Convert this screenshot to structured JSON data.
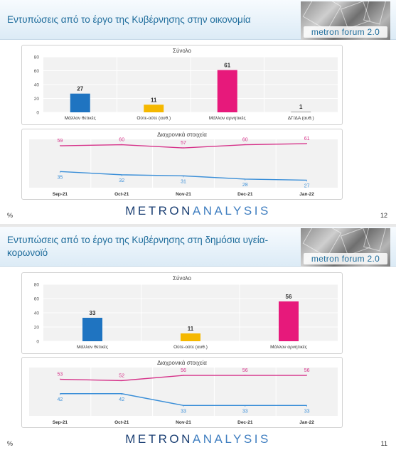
{
  "brand": {
    "part1": "METRON",
    "part2": "ANALYSIS"
  },
  "logo": {
    "text": "metron forum 2.0"
  },
  "colors": {
    "title": "#1f6d9c",
    "positive": "#1f74c1",
    "neutral": "#f5b800",
    "negative": "#e7197b",
    "dk": "#9e9e9e",
    "line_negative": "#d6338a",
    "line_positive": "#3b8fd8"
  },
  "slides": [
    {
      "title": "Εντυπώσεις από το έργο της Κυβέρνησης στην οικονομία",
      "page_number": "12",
      "percent_label": "%",
      "bar_title": "Σύνολο",
      "line_title": "Διαχρονικά στοιχεία"
    },
    {
      "title": "Εντυπώσεις από το έργο της Κυβέρνησης στη δημόσια υγεία-κορωνοϊό",
      "page_number": "11",
      "percent_label": "%",
      "bar_title": "Σύνολο",
      "line_title": "Διαχρονικά στοιχεία"
    }
  ],
  "chart_data": [
    {
      "type": "bar",
      "title": "Σύνολο",
      "categories": [
        "Μάλλον θετικές",
        "Ούτε-ούτε (αυθ.)",
        "Μάλλον αρνητικές",
        "ΔΓ/ΔΑ (αυθ.)"
      ],
      "values": [
        27,
        11,
        61,
        1
      ],
      "ylim": [
        0,
        80
      ],
      "yticks": [
        0,
        20,
        40,
        60,
        80
      ],
      "grid": true
    },
    {
      "type": "line",
      "title": "Διαχρονικά στοιχεία",
      "x": [
        "Sep-21",
        "Oct-21",
        "Nov-21",
        "Dec-21",
        "Jan-22"
      ],
      "series": [
        {
          "values": [
            59,
            60,
            57,
            60,
            61
          ]
        },
        {
          "values": [
            35,
            32,
            31,
            28,
            27
          ]
        }
      ],
      "ylim": [
        20,
        65
      ],
      "grid": true
    },
    {
      "type": "bar",
      "title": "Σύνολο",
      "categories": [
        "Μάλλον θετικές",
        "Ούτε-ούτε (αυθ.)",
        "Μάλλον αρνητικές"
      ],
      "values": [
        33,
        11,
        56
      ],
      "ylim": [
        0,
        80
      ],
      "yticks": [
        0,
        20,
        40,
        60,
        80
      ],
      "grid": true
    },
    {
      "type": "line",
      "title": "Διαχρονικά στοιχεία",
      "x": [
        "Sep-21",
        "Oct-21",
        "Nov-21",
        "Dec-21",
        "Jan-22"
      ],
      "series": [
        {
          "values": [
            53,
            52,
            56,
            56,
            56
          ]
        },
        {
          "values": [
            42,
            42,
            33,
            33,
            33
          ]
        }
      ],
      "ylim": [
        25,
        62
      ],
      "grid": true
    }
  ]
}
